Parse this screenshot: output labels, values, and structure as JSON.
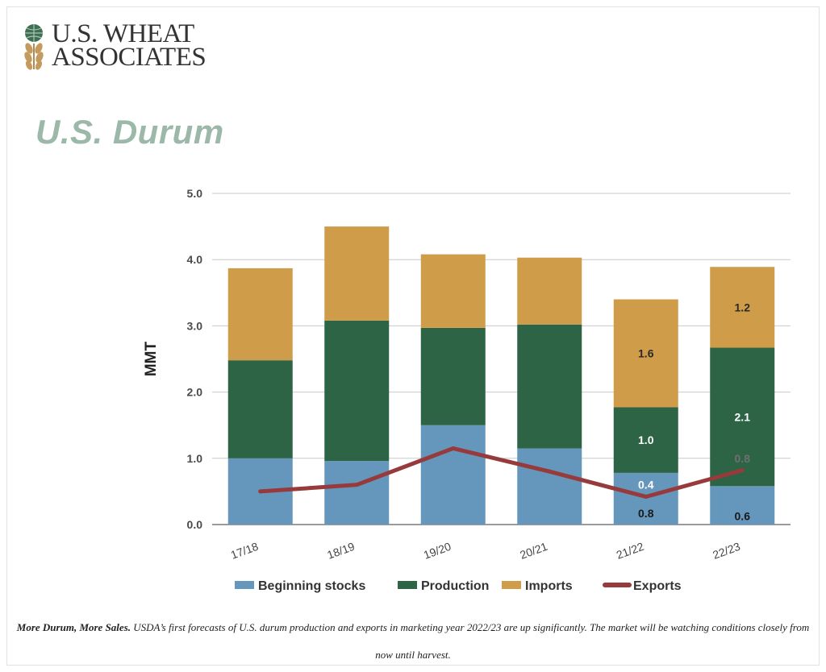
{
  "logo": {
    "line1": "U.S. WHEAT",
    "line2": "ASSOCIATES"
  },
  "chart_data": {
    "type": "bar",
    "stacked": true,
    "title": "U.S. Durum",
    "ylabel": "MMT",
    "xlabel": "",
    "ylim": [
      0,
      5
    ],
    "yticks": [
      "0.0",
      "1.0",
      "2.0",
      "3.0",
      "4.0",
      "5.0"
    ],
    "grid": true,
    "legend_position": "bottom",
    "categories": [
      "17/18",
      "18/19",
      "19/20",
      "20/21",
      "21/22",
      "22/23"
    ],
    "series": [
      {
        "name": "Beginning stocks",
        "color": "#6597bd",
        "values": [
          1.0,
          0.96,
          1.5,
          1.15,
          0.78,
          0.58
        ]
      },
      {
        "name": "Production",
        "color": "#2d6446",
        "values": [
          1.48,
          2.12,
          1.47,
          1.87,
          0.99,
          2.09
        ]
      },
      {
        "name": "Imports",
        "color": "#cf9c4a",
        "values": [
          1.39,
          1.42,
          1.11,
          1.01,
          1.63,
          1.22
        ]
      }
    ],
    "line_series": {
      "name": "Exports",
      "color": "#973a3b",
      "values": [
        0.5,
        0.6,
        1.15,
        0.8,
        0.42,
        0.82
      ]
    },
    "data_labels": [
      {
        "category": "21/22",
        "series": "Imports",
        "text": "1.6",
        "color": "#2a2a2a"
      },
      {
        "category": "21/22",
        "series": "Production",
        "text": "1.0",
        "color": "#ffffff"
      },
      {
        "category": "21/22",
        "series": "Exports",
        "text": "0.4",
        "color": "#ffffff"
      },
      {
        "category": "21/22",
        "series": "Beginning stocks",
        "text": "0.8",
        "color": "#1a1a1a"
      },
      {
        "category": "22/23",
        "series": "Imports",
        "text": "1.2",
        "color": "#2a2a2a"
      },
      {
        "category": "22/23",
        "series": "Production",
        "text": "2.1",
        "color": "#ffffff"
      },
      {
        "category": "22/23",
        "series": "Exports",
        "text": "0.8",
        "color": "#6f6f6f"
      },
      {
        "category": "22/23",
        "series": "Beginning stocks",
        "text": "0.6",
        "color": "#1a1a1a"
      }
    ]
  },
  "caption": {
    "lead": "More Durum, More Sales.",
    "text": " USDA’s first forecasts of U.S. durum production and exports in marketing year 2022/23 are up significantly. The market will be watching conditions closely from now until harvest."
  }
}
